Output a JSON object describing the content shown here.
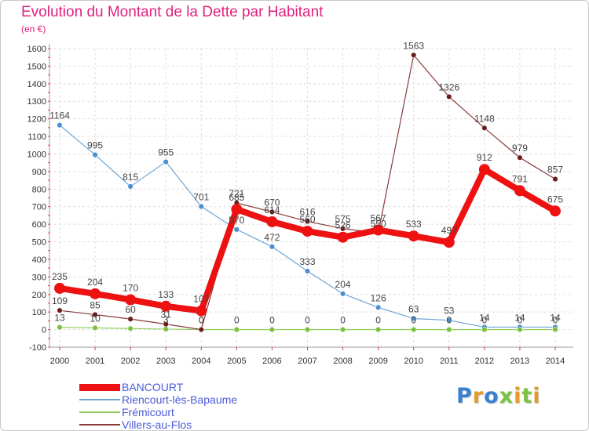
{
  "page": {
    "title": "Evolution du Montant de la Dette par Habitant",
    "unit": "(en €)",
    "brand": "Proxiti",
    "brand_colors": [
      "#3a7fd0",
      "#e39a2b",
      "#3a7fd0",
      "#7cc142",
      "#e39a2b",
      "#7cc142",
      "#e39a2b"
    ]
  },
  "chart_data": {
    "type": "line",
    "title": "Evolution du Montant de la Dette par Habitant",
    "ylabel": "(en €)",
    "xlabel": "",
    "ylim": [
      -100,
      1600
    ],
    "yticks": [
      -100,
      0,
      100,
      200,
      300,
      400,
      500,
      600,
      700,
      800,
      900,
      1000,
      1100,
      1200,
      1300,
      1400,
      1500,
      1600
    ],
    "x": [
      2000,
      2001,
      2002,
      2003,
      2004,
      2005,
      2006,
      2007,
      2008,
      2009,
      2010,
      2011,
      2012,
      2013,
      2014
    ],
    "grid": true,
    "legend_position": "bottom-left",
    "series": [
      {
        "name": "BANCOURT",
        "color": "#ee1111",
        "line_color": "#ee1111",
        "emphasis": true,
        "values": [
          235,
          204,
          170,
          133,
          107,
          685,
          614,
          560,
          526,
          567,
          533,
          497,
          912,
          791,
          675
        ],
        "labels": [
          "235",
          "204",
          "170",
          "133",
          "107",
          "685",
          "614",
          "560",
          "526",
          "567",
          "533",
          "497",
          "912",
          "791",
          "675"
        ]
      },
      {
        "name": "Riencourt-lès-Bapaume",
        "color": "#4a8fd0",
        "line_color": "#6aa5d8",
        "emphasis": false,
        "values": [
          1164,
          995,
          815,
          955,
          701,
          570,
          472,
          333,
          204,
          126,
          63,
          53,
          14,
          14,
          14
        ],
        "labels": [
          "1164",
          "995",
          "815",
          "955",
          "701",
          "570",
          "472",
          "333",
          "204",
          "126",
          "63",
          "53",
          "14",
          "14",
          "14"
        ]
      },
      {
        "name": "Frémicourt",
        "color": "#7cc142",
        "line_color": "#8fd060",
        "emphasis": false,
        "values": [
          13,
          10,
          6,
          3,
          0,
          0,
          0,
          0,
          0,
          0,
          0,
          0,
          0,
          0,
          0
        ],
        "labels": [
          "13",
          "10",
          "",
          "3",
          "0",
          "0",
          "0",
          "0",
          "0",
          "0",
          "0",
          "0",
          "0",
          "0",
          "0"
        ]
      },
      {
        "name": "Villers-au-Flos",
        "color": "#6b1b1b",
        "line_color": "#8a3a3a",
        "emphasis": false,
        "values": [
          109,
          85,
          60,
          31,
          0,
          721,
          670,
          616,
          575,
          550,
          1563,
          1326,
          1148,
          979,
          857
        ],
        "labels": [
          "109",
          "85",
          "60",
          "31",
          "0",
          "721",
          "670",
          "616",
          "575",
          "550",
          "1563",
          "1326",
          "1148",
          "979",
          "857"
        ]
      }
    ]
  }
}
